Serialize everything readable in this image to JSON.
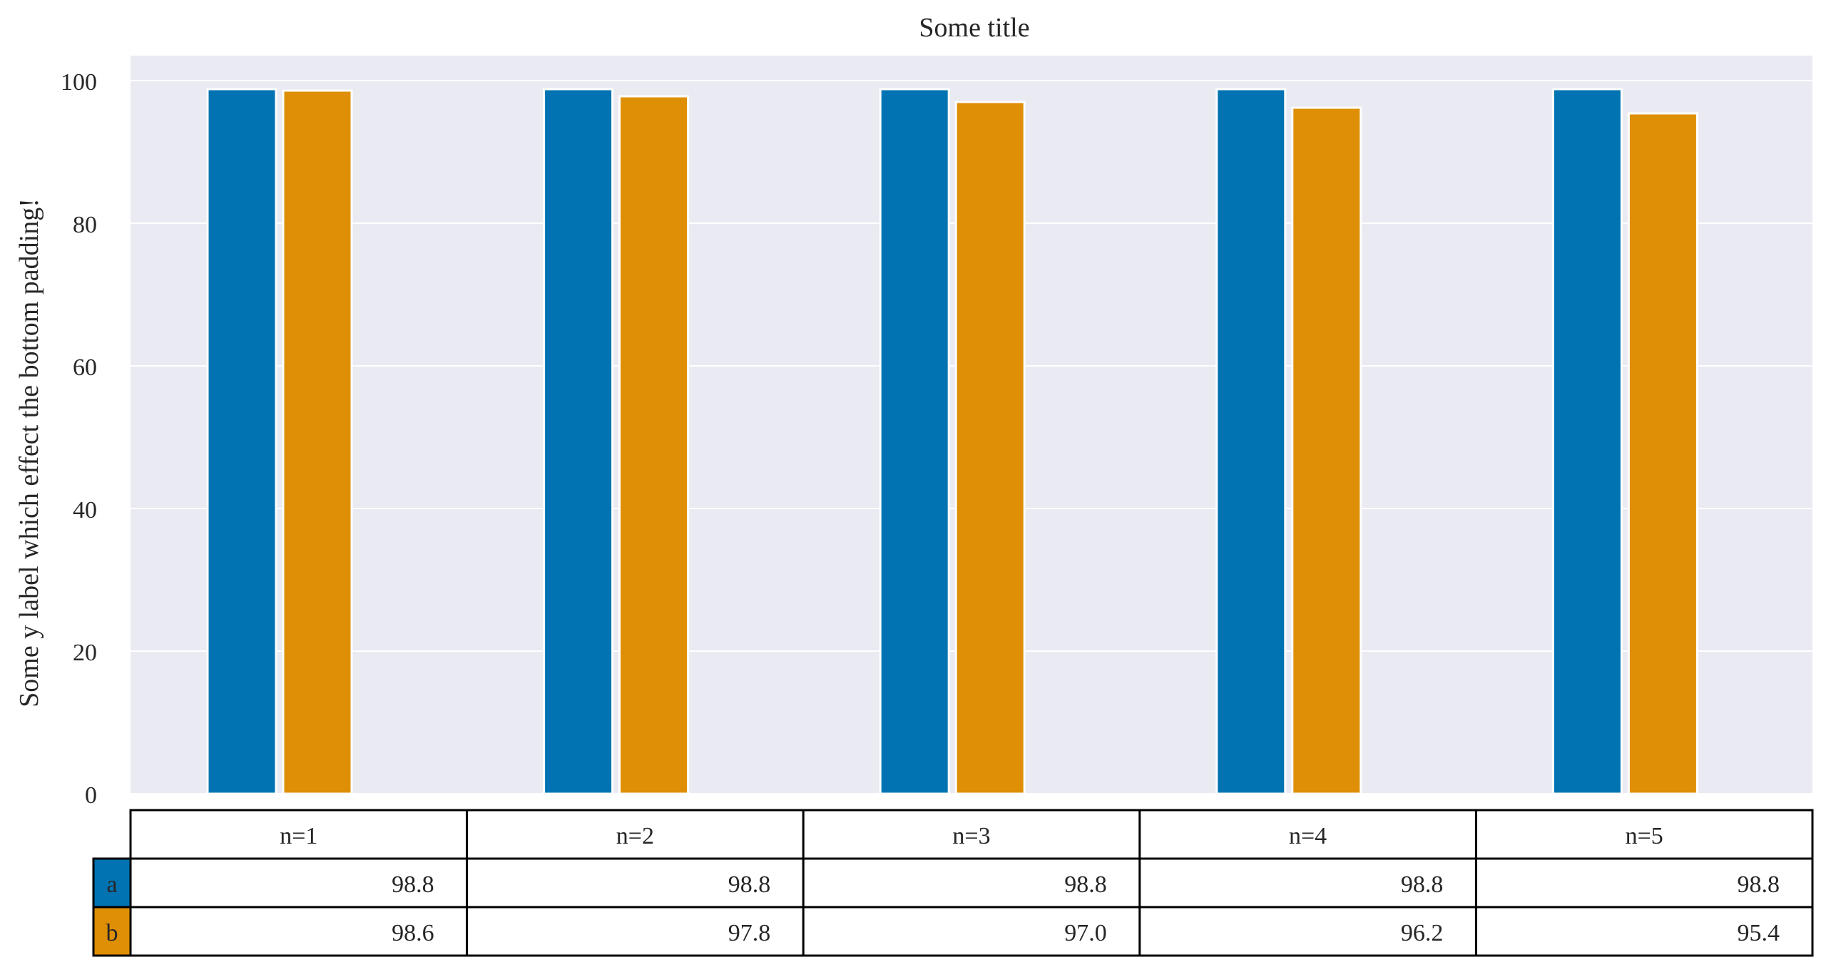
{
  "chart_data": {
    "type": "bar",
    "title": "Some title",
    "xlabel": "",
    "ylabel": "Some y label which effect the bottom padding!",
    "categories": [
      "n=1",
      "n=2",
      "n=3",
      "n=4",
      "n=5"
    ],
    "series": [
      {
        "name": "a",
        "color": "#0173b2",
        "values": [
          98.8,
          98.8,
          98.8,
          98.8,
          98.8
        ]
      },
      {
        "name": "b",
        "color": "#de8f05",
        "values": [
          98.6,
          97.8,
          97.0,
          96.2,
          95.4
        ]
      }
    ],
    "ylim": [
      0,
      103.5
    ],
    "yticks": [
      0,
      20,
      40,
      60,
      80,
      100
    ],
    "grid": true,
    "legend": "none",
    "table": {
      "col_labels": [
        "n=1",
        "n=2",
        "n=3",
        "n=4",
        "n=5"
      ],
      "rows": [
        {
          "label": "a",
          "cells": [
            "98.8",
            "98.8",
            "98.8",
            "98.8",
            "98.8"
          ]
        },
        {
          "label": "b",
          "cells": [
            "98.6",
            "97.8",
            "97.0",
            "96.2",
            "95.4"
          ]
        }
      ]
    },
    "colors": {
      "plot_background": "#eaeaf2",
      "gridline": "#ffffff",
      "text": "#262626",
      "table_border": "#000000"
    }
  }
}
